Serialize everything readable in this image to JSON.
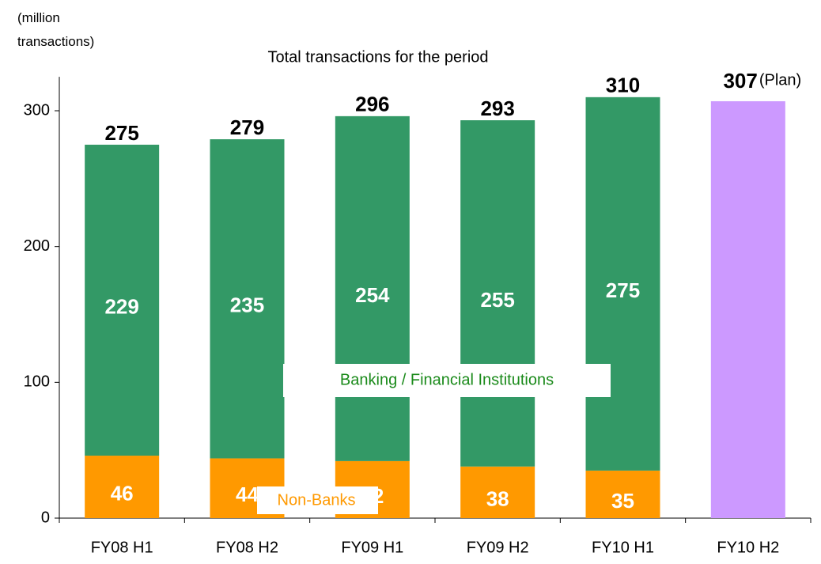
{
  "chart_data": {
    "type": "stacked_bar",
    "title": "Total transactions for the period",
    "y_axis_label": "(million transactions)",
    "categories": [
      "FY08 H1",
      "FY08 H2",
      "FY09 H1",
      "FY09 H2",
      "FY10 H1",
      "FY10 H2"
    ],
    "series": [
      {
        "name": "Non-Banks",
        "color": "#ff9900",
        "values": [
          46,
          44,
          42,
          38,
          35,
          null
        ]
      },
      {
        "name": "Banking / Financial Institutions",
        "color": "#339966",
        "values": [
          229,
          235,
          254,
          255,
          275,
          null
        ]
      },
      {
        "name": "(Plan)",
        "color": "#cc99ff",
        "values": [
          null,
          null,
          null,
          null,
          null,
          307
        ]
      }
    ],
    "totals": [
      275,
      279,
      296,
      293,
      310,
      null
    ],
    "ylim": [
      0,
      325
    ],
    "yticks": [
      0,
      100,
      200,
      300
    ]
  }
}
